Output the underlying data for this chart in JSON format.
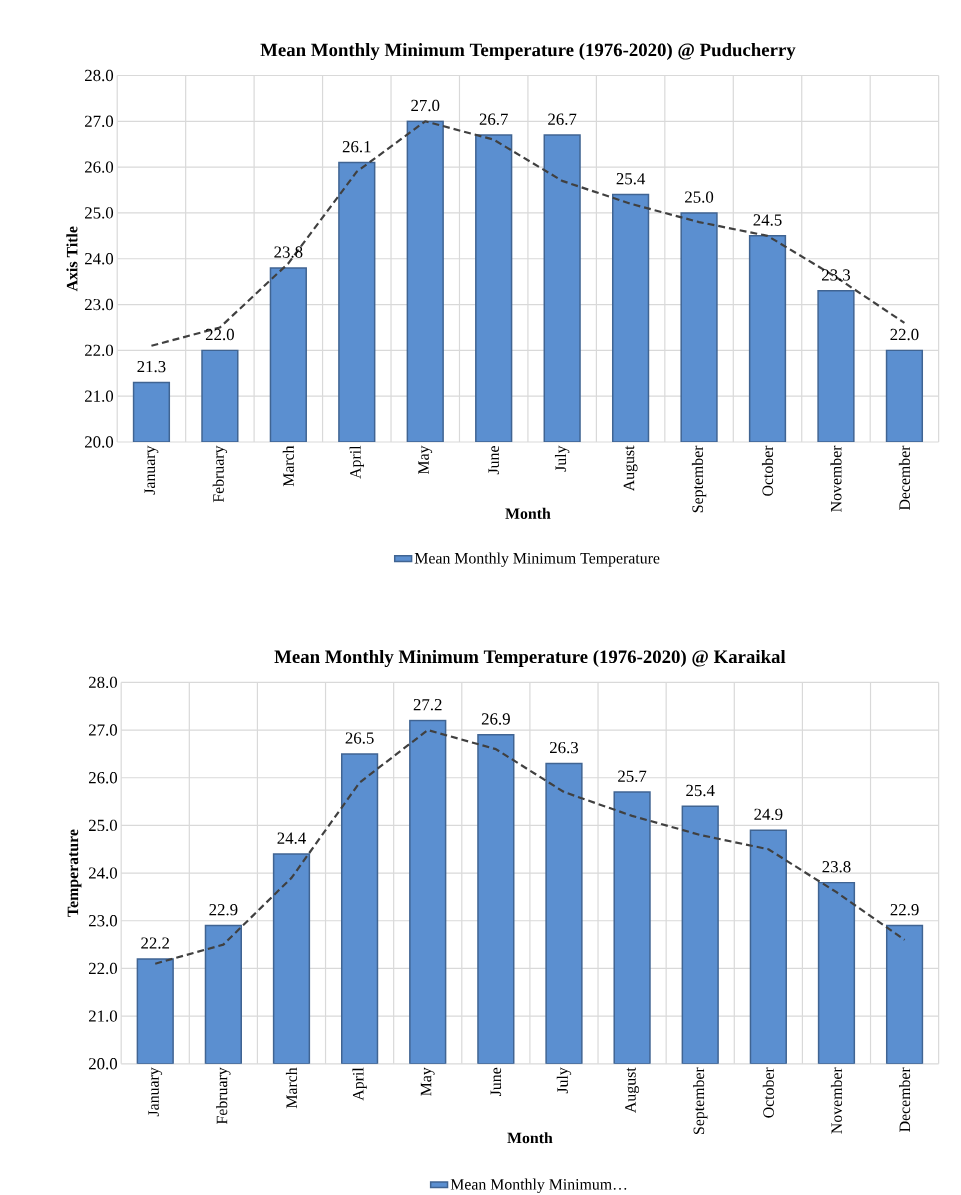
{
  "chart_data": [
    {
      "type": "bar",
      "title": "Mean Monthly Minimum Temperature (1976-2020) @ Puducherry",
      "xlabel": "Month",
      "ylabel": "Axis Title",
      "categories": [
        "January",
        "February",
        "March",
        "April",
        "May",
        "June",
        "July",
        "August",
        "September",
        "October",
        "November",
        "December"
      ],
      "series": [
        {
          "name": "Mean Monthly Minimum Temperature",
          "color": "#5b8fd0",
          "values": [
            21.3,
            22.0,
            23.8,
            26.1,
            27.0,
            26.7,
            26.7,
            25.4,
            25.0,
            24.5,
            23.3,
            22.0
          ],
          "value_labels": [
            "21.3",
            "22.0",
            "23.8",
            "26.1",
            "27.0",
            "26.7",
            "26.7",
            "25.4",
            "25.0",
            "24.5",
            "23.3",
            "22.0"
          ]
        },
        {
          "type": "line",
          "color": "#404040",
          "line_style": "dashed",
          "values": [
            22.1,
            22.5,
            23.9,
            25.9,
            27.0,
            26.6,
            25.7,
            25.2,
            24.8,
            24.5,
            23.6,
            22.6
          ]
        }
      ],
      "ylim": [
        20,
        28
      ],
      "yticks": [
        {
          "value": 20,
          "label": "20.0"
        },
        {
          "value": 21,
          "label": "21.0"
        },
        {
          "value": 22,
          "label": "22.0"
        },
        {
          "value": 23,
          "label": "23.0"
        },
        {
          "value": 24,
          "label": "24.0"
        },
        {
          "value": 25,
          "label": "25.0"
        },
        {
          "value": 26,
          "label": "26.0"
        },
        {
          "value": 27,
          "label": "27.0"
        },
        {
          "value": 28,
          "label": "28.0"
        }
      ],
      "grid": true,
      "legend": "bottom"
    },
    {
      "type": "bar",
      "title": "Mean Monthly Minimum Temperature (1976-2020) @ Karaikal",
      "xlabel": "Month",
      "ylabel": "Temperature",
      "categories": [
        "January",
        "February",
        "March",
        "April",
        "May",
        "June",
        "July",
        "August",
        "September",
        "October",
        "November",
        "December"
      ],
      "series": [
        {
          "name": "Mean Monthly Minimum…",
          "color": "#5b8fd0",
          "values": [
            22.2,
            22.9,
            24.4,
            26.5,
            27.2,
            26.9,
            26.3,
            25.7,
            25.4,
            24.9,
            23.8,
            22.9
          ],
          "value_labels": [
            "22.2",
            "22.9",
            "24.4",
            "26.5",
            "27.2",
            "26.9",
            "26.3",
            "25.7",
            "25.4",
            "24.9",
            "23.8",
            "22.9"
          ]
        },
        {
          "type": "line",
          "color": "#404040",
          "line_style": "dashed",
          "values": [
            22.1,
            22.5,
            23.9,
            25.9,
            27.0,
            26.6,
            25.7,
            25.2,
            24.8,
            24.5,
            23.6,
            22.6
          ]
        }
      ],
      "ylim": [
        20,
        28
      ],
      "yticks": [
        {
          "value": 20,
          "label": "20.0"
        },
        {
          "value": 21,
          "label": "21.0"
        },
        {
          "value": 22,
          "label": "22.0"
        },
        {
          "value": 23,
          "label": "23.0"
        },
        {
          "value": 24,
          "label": "24.0"
        },
        {
          "value": 25,
          "label": "25.0"
        },
        {
          "value": 26,
          "label": "26.0"
        },
        {
          "value": 27,
          "label": "27.0"
        },
        {
          "value": 28,
          "label": "28.0"
        }
      ],
      "grid": true,
      "legend": "bottom"
    }
  ]
}
